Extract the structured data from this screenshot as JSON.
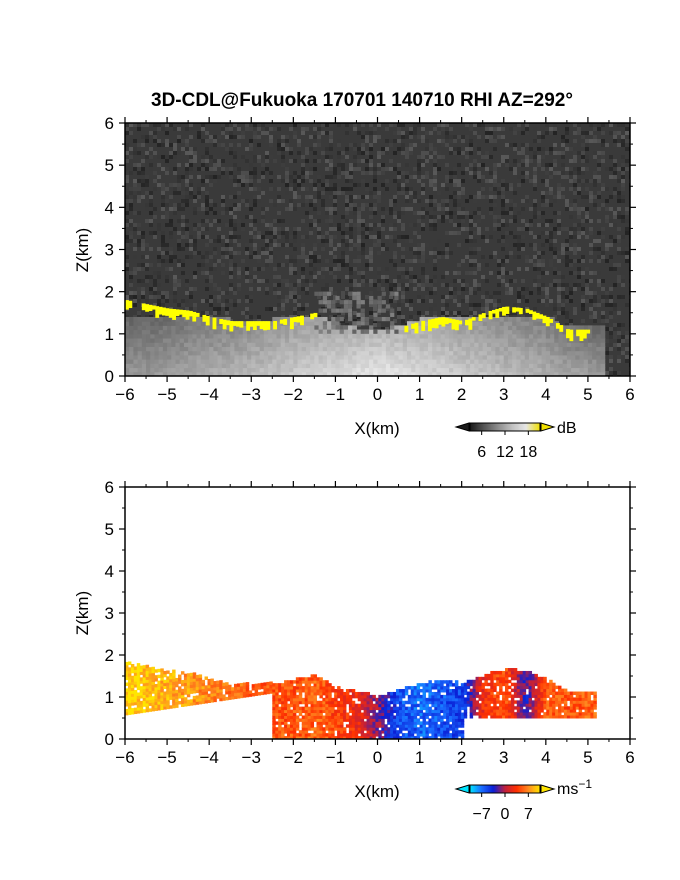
{
  "figure": {
    "title": "3D-CDL@Fukuoka 170701 140710 RHI AZ=292°"
  },
  "chart_data": [
    {
      "type": "heatmap",
      "panel": "reflectivity",
      "xlabel": "X(km)",
      "ylabel": "Z(km)",
      "xlim": [
        -6,
        6
      ],
      "ylim": [
        0,
        6
      ],
      "xticks": [
        "−6",
        "−5",
        "−4",
        "−3",
        "−2",
        "−1",
        "0",
        "1",
        "2",
        "3",
        "4",
        "5",
        "6"
      ],
      "yticks": [
        "0",
        "1",
        "2",
        "3",
        "4",
        "5",
        "6"
      ],
      "grid": false,
      "colorbar": {
        "unit": "dB",
        "ticks": [
          "6",
          "12",
          "18"
        ],
        "colors": [
          "#1a1a1a",
          "#555555",
          "#8c8c8c",
          "#c0c0c0",
          "#e6e6e6",
          "#f0e000"
        ]
      },
      "noise_color": "#3a3a3a",
      "echo_color": "#ffff00",
      "echo_top_profile": {
        "x": [
          -6.0,
          -5.5,
          -5.0,
          -4.5,
          -4.0,
          -3.5,
          -3.0,
          -2.5,
          -2.0,
          -1.5,
          -1.0,
          0.0,
          1.0,
          1.5,
          2.0,
          2.5,
          3.0,
          3.5,
          4.0,
          4.5,
          5.0
        ],
        "z": [
          1.8,
          1.7,
          1.6,
          1.55,
          1.4,
          1.3,
          1.3,
          1.3,
          1.4,
          1.5,
          1.2,
          1.0,
          1.3,
          1.4,
          1.3,
          1.5,
          1.65,
          1.6,
          1.4,
          1.1,
          1.1
        ]
      }
    },
    {
      "type": "heatmap",
      "panel": "doppler_velocity",
      "xlabel": "X(km)",
      "ylabel": "Z(km)",
      "xlim": [
        -6,
        6
      ],
      "ylim": [
        0,
        6
      ],
      "xticks": [
        "−6",
        "−5",
        "−4",
        "−3",
        "−2",
        "−1",
        "0",
        "1",
        "2",
        "3",
        "4",
        "5",
        "6"
      ],
      "yticks": [
        "0",
        "1",
        "2",
        "3",
        "4",
        "5",
        "6"
      ],
      "grid": false,
      "colorbar": {
        "unit": "ms",
        "unit_exponent": "−1",
        "ticks": [
          "−7",
          "0",
          "7"
        ],
        "range": [
          -7,
          7
        ],
        "colors": [
          "#00e5ff",
          "#1a6cff",
          "#0a1fd6",
          "#c0203c",
          "#ff3000",
          "#ff8a20",
          "#ffe500"
        ]
      },
      "velocity_profile": {
        "x": [
          -6.0,
          -5.5,
          -5.0,
          -4.5,
          -4.0,
          -3.5,
          -3.0,
          -2.5,
          -2.0,
          -1.5,
          -1.0,
          -0.5,
          0.0,
          0.5,
          1.0,
          1.5,
          2.0,
          2.5,
          3.0,
          3.5,
          4.0,
          4.5,
          5.0
        ],
        "value": [
          6.5,
          6.0,
          5.5,
          5.0,
          4.5,
          4.0,
          3.5,
          3.0,
          3.0,
          3.5,
          2.5,
          1.5,
          -1.0,
          -4.0,
          -4.5,
          -4.0,
          -3.5,
          2.0,
          3.0,
          -2.0,
          3.5,
          3.0,
          3.5
        ]
      }
    }
  ]
}
